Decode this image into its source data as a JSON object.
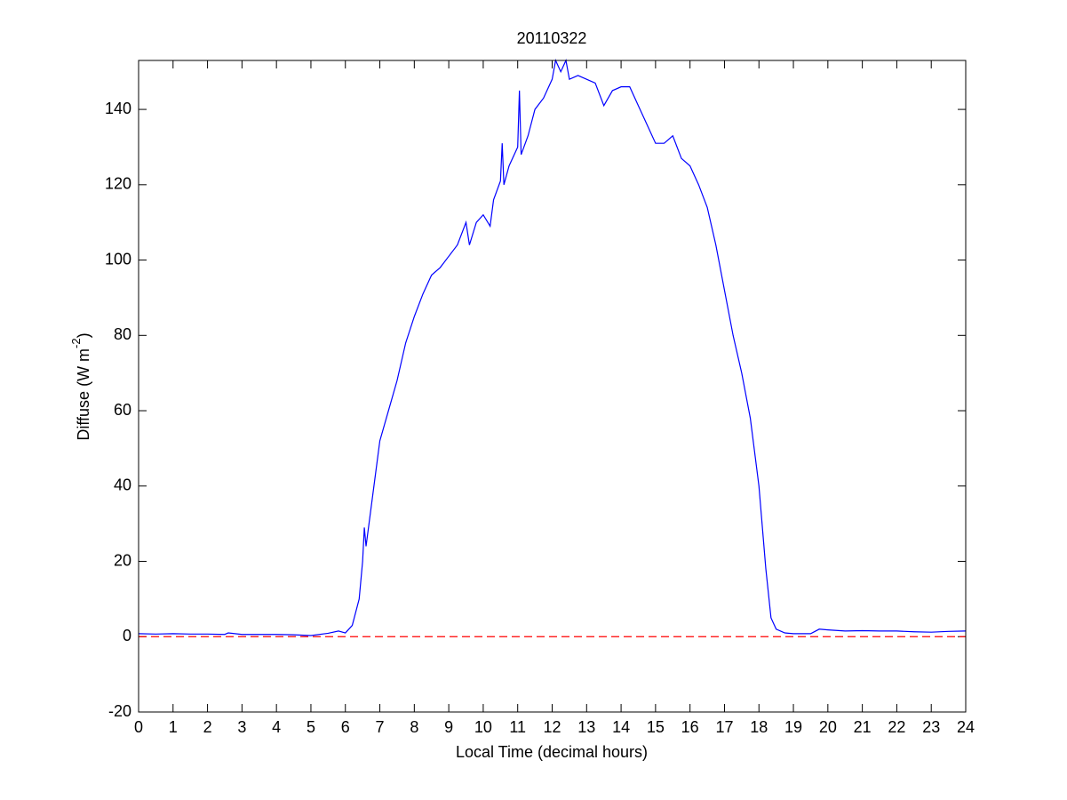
{
  "chart_data": {
    "type": "line",
    "title": "20110322",
    "xlabel": "Local Time (decimal hours)",
    "ylabel": [
      "Diffuse (W m",
      "-2",
      ")"
    ],
    "xlim": [
      0,
      24
    ],
    "xticks": [
      0,
      1,
      2,
      3,
      4,
      5,
      6,
      7,
      8,
      9,
      10,
      11,
      12,
      13,
      14,
      15,
      16,
      17,
      18,
      19,
      20,
      21,
      22,
      23,
      24
    ],
    "ylim": [
      -20,
      153
    ],
    "yticks": [
      -20,
      0,
      20,
      40,
      60,
      80,
      100,
      120,
      140
    ],
    "grid": false,
    "reference_line": {
      "y": 0,
      "color": "#ff0000",
      "style": "dashed"
    },
    "series": [
      {
        "color": "#0000ff",
        "x": [
          0,
          0.5,
          1,
          1.5,
          2,
          2.5,
          2.6,
          3,
          3.5,
          4,
          4.5,
          5,
          5.5,
          5.8,
          6.0,
          6.2,
          6.4,
          6.5,
          6.55,
          6.6,
          6.8,
          7.0,
          7.25,
          7.5,
          7.75,
          8.0,
          8.25,
          8.5,
          8.75,
          9.0,
          9.25,
          9.5,
          9.6,
          9.8,
          10.0,
          10.2,
          10.3,
          10.5,
          10.55,
          10.6,
          10.75,
          11.0,
          11.05,
          11.1,
          11.3,
          11.5,
          11.75,
          12.0,
          12.1,
          12.25,
          12.4,
          12.5,
          12.75,
          13.0,
          13.25,
          13.5,
          13.75,
          14.0,
          14.25,
          14.5,
          14.75,
          15.0,
          15.25,
          15.5,
          15.75,
          16.0,
          16.25,
          16.5,
          16.75,
          17.0,
          17.25,
          17.5,
          17.75,
          18.0,
          18.2,
          18.35,
          18.5,
          18.75,
          19.0,
          19.5,
          19.75,
          20.0,
          20.5,
          21.0,
          21.5,
          22.0,
          22.5,
          23.0,
          23.5,
          24.0
        ],
        "values": [
          0.8,
          0.7,
          0.8,
          0.7,
          0.7,
          0.6,
          1.0,
          0.6,
          0.6,
          0.6,
          0.5,
          0.3,
          0.9,
          1.5,
          1.0,
          3,
          10,
          20,
          29,
          24,
          38,
          52,
          60,
          68,
          78,
          85,
          91,
          96,
          98,
          101,
          104,
          110,
          104,
          110,
          112,
          109,
          116,
          121,
          131,
          120,
          125,
          130,
          145,
          128,
          133,
          140,
          143,
          148,
          153,
          150,
          153,
          148,
          149,
          148,
          147,
          141,
          145,
          146,
          146,
          141,
          136,
          131,
          131,
          133,
          127,
          125,
          120,
          114,
          104,
          92,
          80,
          70,
          58,
          40,
          18,
          5,
          2,
          1,
          0.8,
          0.8,
          2,
          1.8,
          1.5,
          1.6,
          1.5,
          1.5,
          1.3,
          1.2,
          1.4,
          1.5
        ]
      }
    ]
  }
}
